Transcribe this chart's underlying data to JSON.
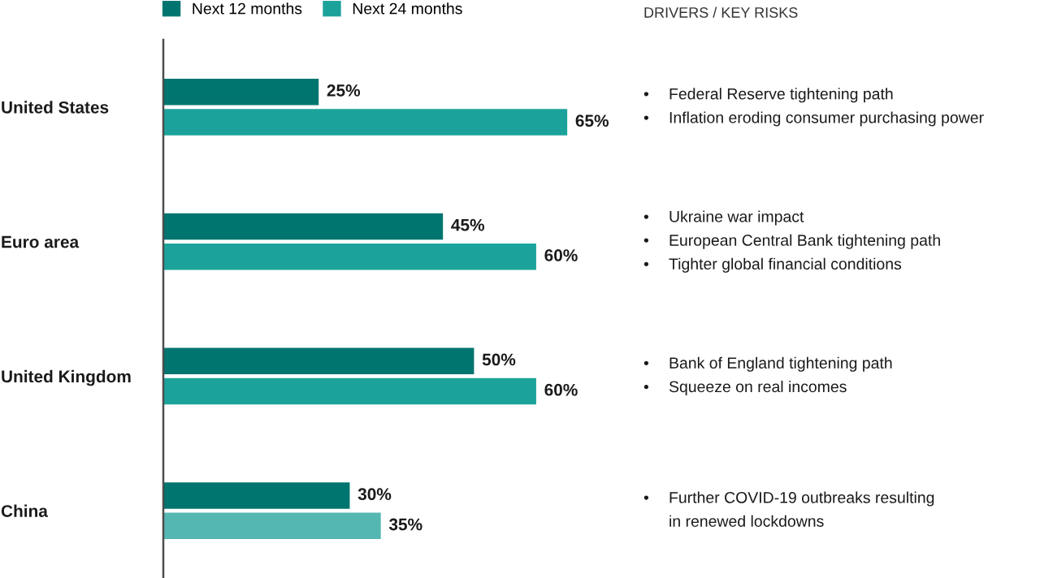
{
  "chart_data": {
    "type": "bar",
    "orientation": "horizontal",
    "categories": [
      "United States",
      "Euro area",
      "United Kingdom",
      "China"
    ],
    "series": [
      {
        "name": "Next 12 months",
        "color": "#00756f",
        "values": [
          25,
          45,
          50,
          30
        ],
        "value_labels": [
          "25%",
          "45%",
          "50%",
          "30%"
        ]
      },
      {
        "name": "Next 24 months",
        "color": "#1ba39b",
        "colors": [
          "#1ba39b",
          "#1ba39b",
          "#1ba39b",
          "#55b7b1"
        ],
        "values": [
          65,
          60,
          60,
          35
        ],
        "value_labels": [
          "65%",
          "60%",
          "60%",
          "35%"
        ]
      }
    ],
    "annotations": [
      "DRIVERS / KEY RISKS",
      "• Federal Reserve tightening path\n• Inflation eroding consumer purchasing power",
      "• Ukraine war impact\n• European Central Bank tightening path\n• Tighter global financial conditions",
      "• Bank of England tightening path\n• Squeeze on real incomes",
      "• Further COVID-19 outbreaks resulting\nin renewed lockdowns"
    ],
    "legend": "top left",
    "tick_labels": "y"
  }
}
